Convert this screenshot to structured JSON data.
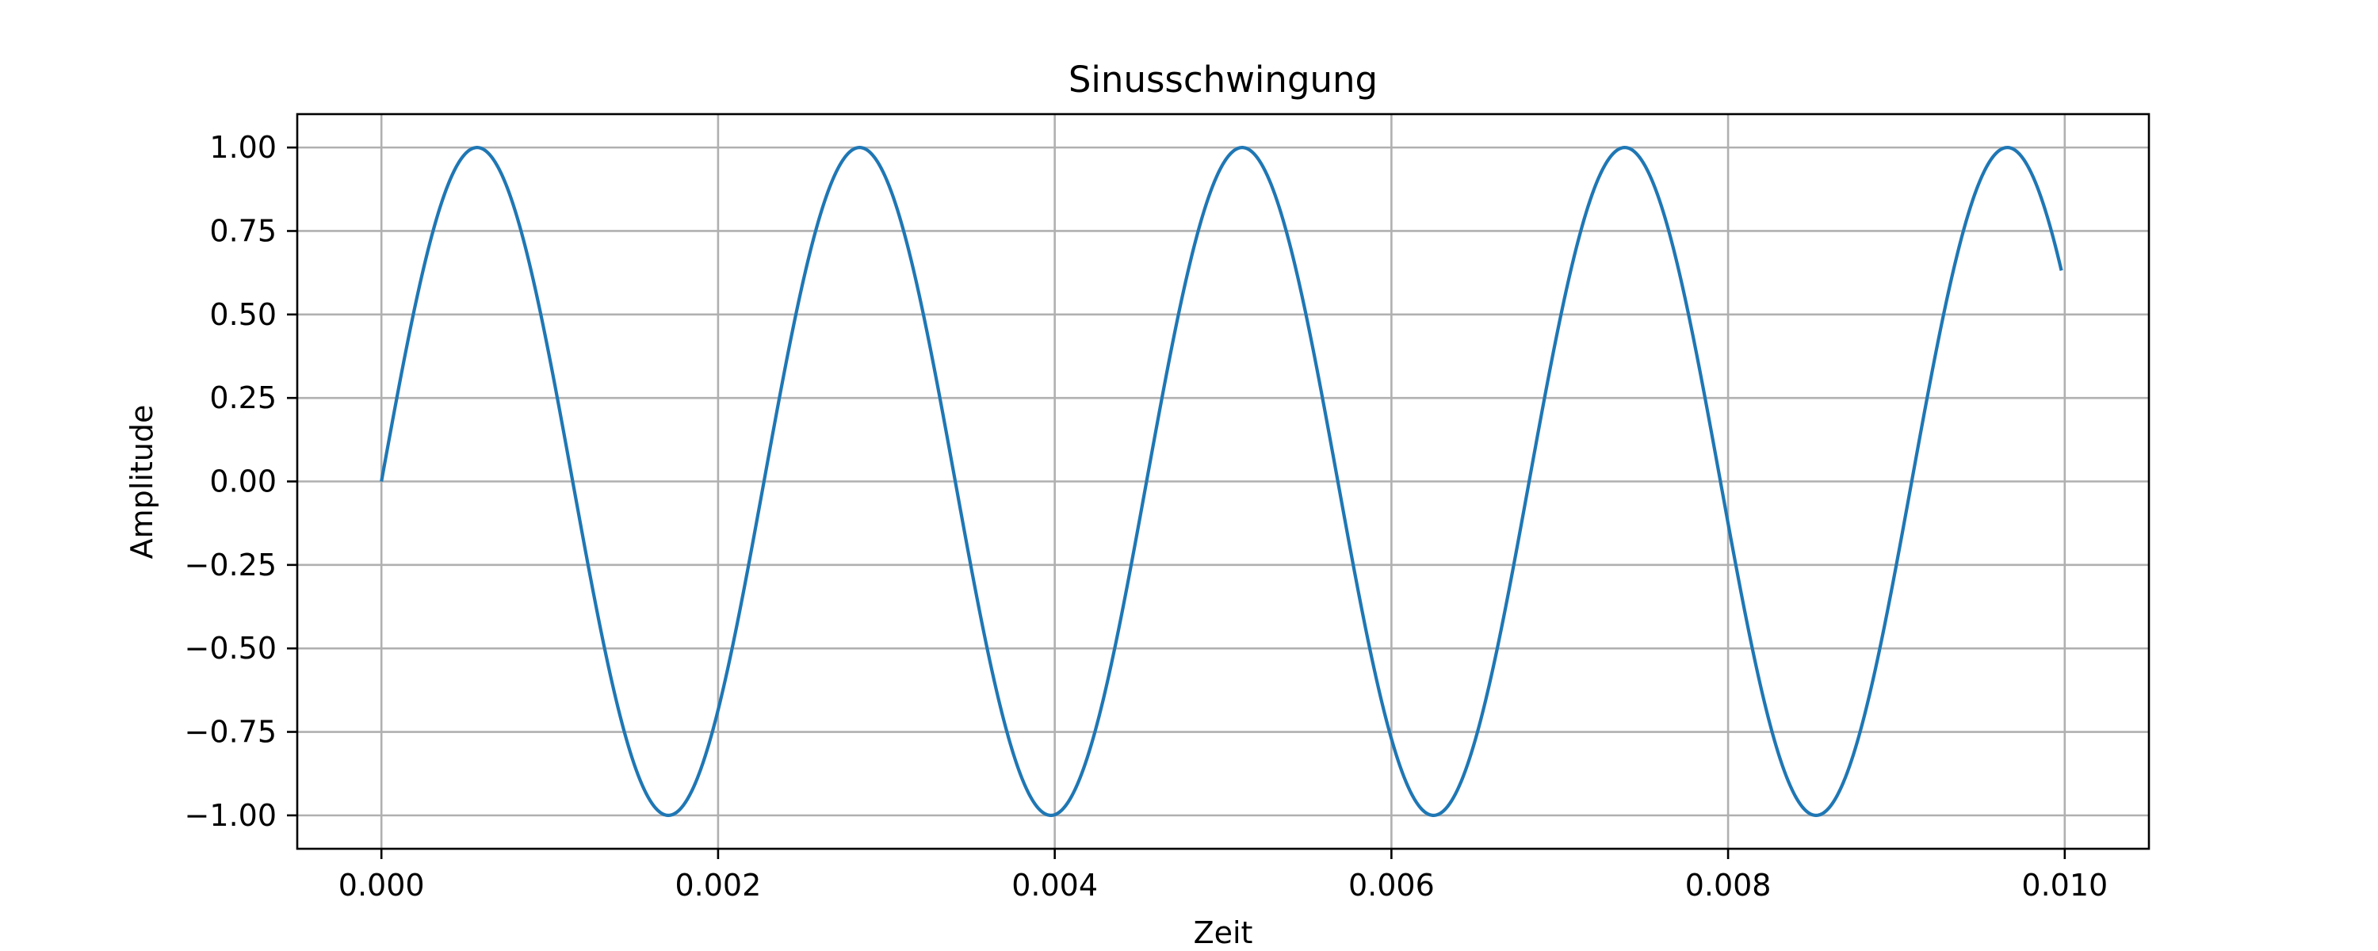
{
  "chart_data": {
    "type": "line",
    "title": "Sinusschwingung",
    "xlabel": "Zeit",
    "ylabel": "Amplitude",
    "xlim": [
      -0.0005,
      0.0105
    ],
    "ylim": [
      -1.1,
      1.1
    ],
    "xticks": [
      0.0,
      0.002,
      0.004,
      0.006,
      0.008,
      0.01
    ],
    "xtick_labels": [
      "0.000",
      "0.002",
      "0.004",
      "0.006",
      "0.008",
      "0.010"
    ],
    "yticks": [
      1.0,
      0.75,
      0.5,
      0.25,
      0.0,
      -0.25,
      -0.5,
      -0.75,
      -1.0
    ],
    "ytick_labels": [
      "1.00",
      "0.75",
      "0.50",
      "0.25",
      "0.00",
      "−0.25",
      "−0.50",
      "−0.75",
      "−1.00"
    ],
    "grid": true,
    "series": [
      {
        "function": "sine",
        "frequency_hz": 440,
        "amplitude": 1.0,
        "x_start": 0.0,
        "x_end": 0.00998,
        "color": "#1f77b4"
      }
    ]
  }
}
